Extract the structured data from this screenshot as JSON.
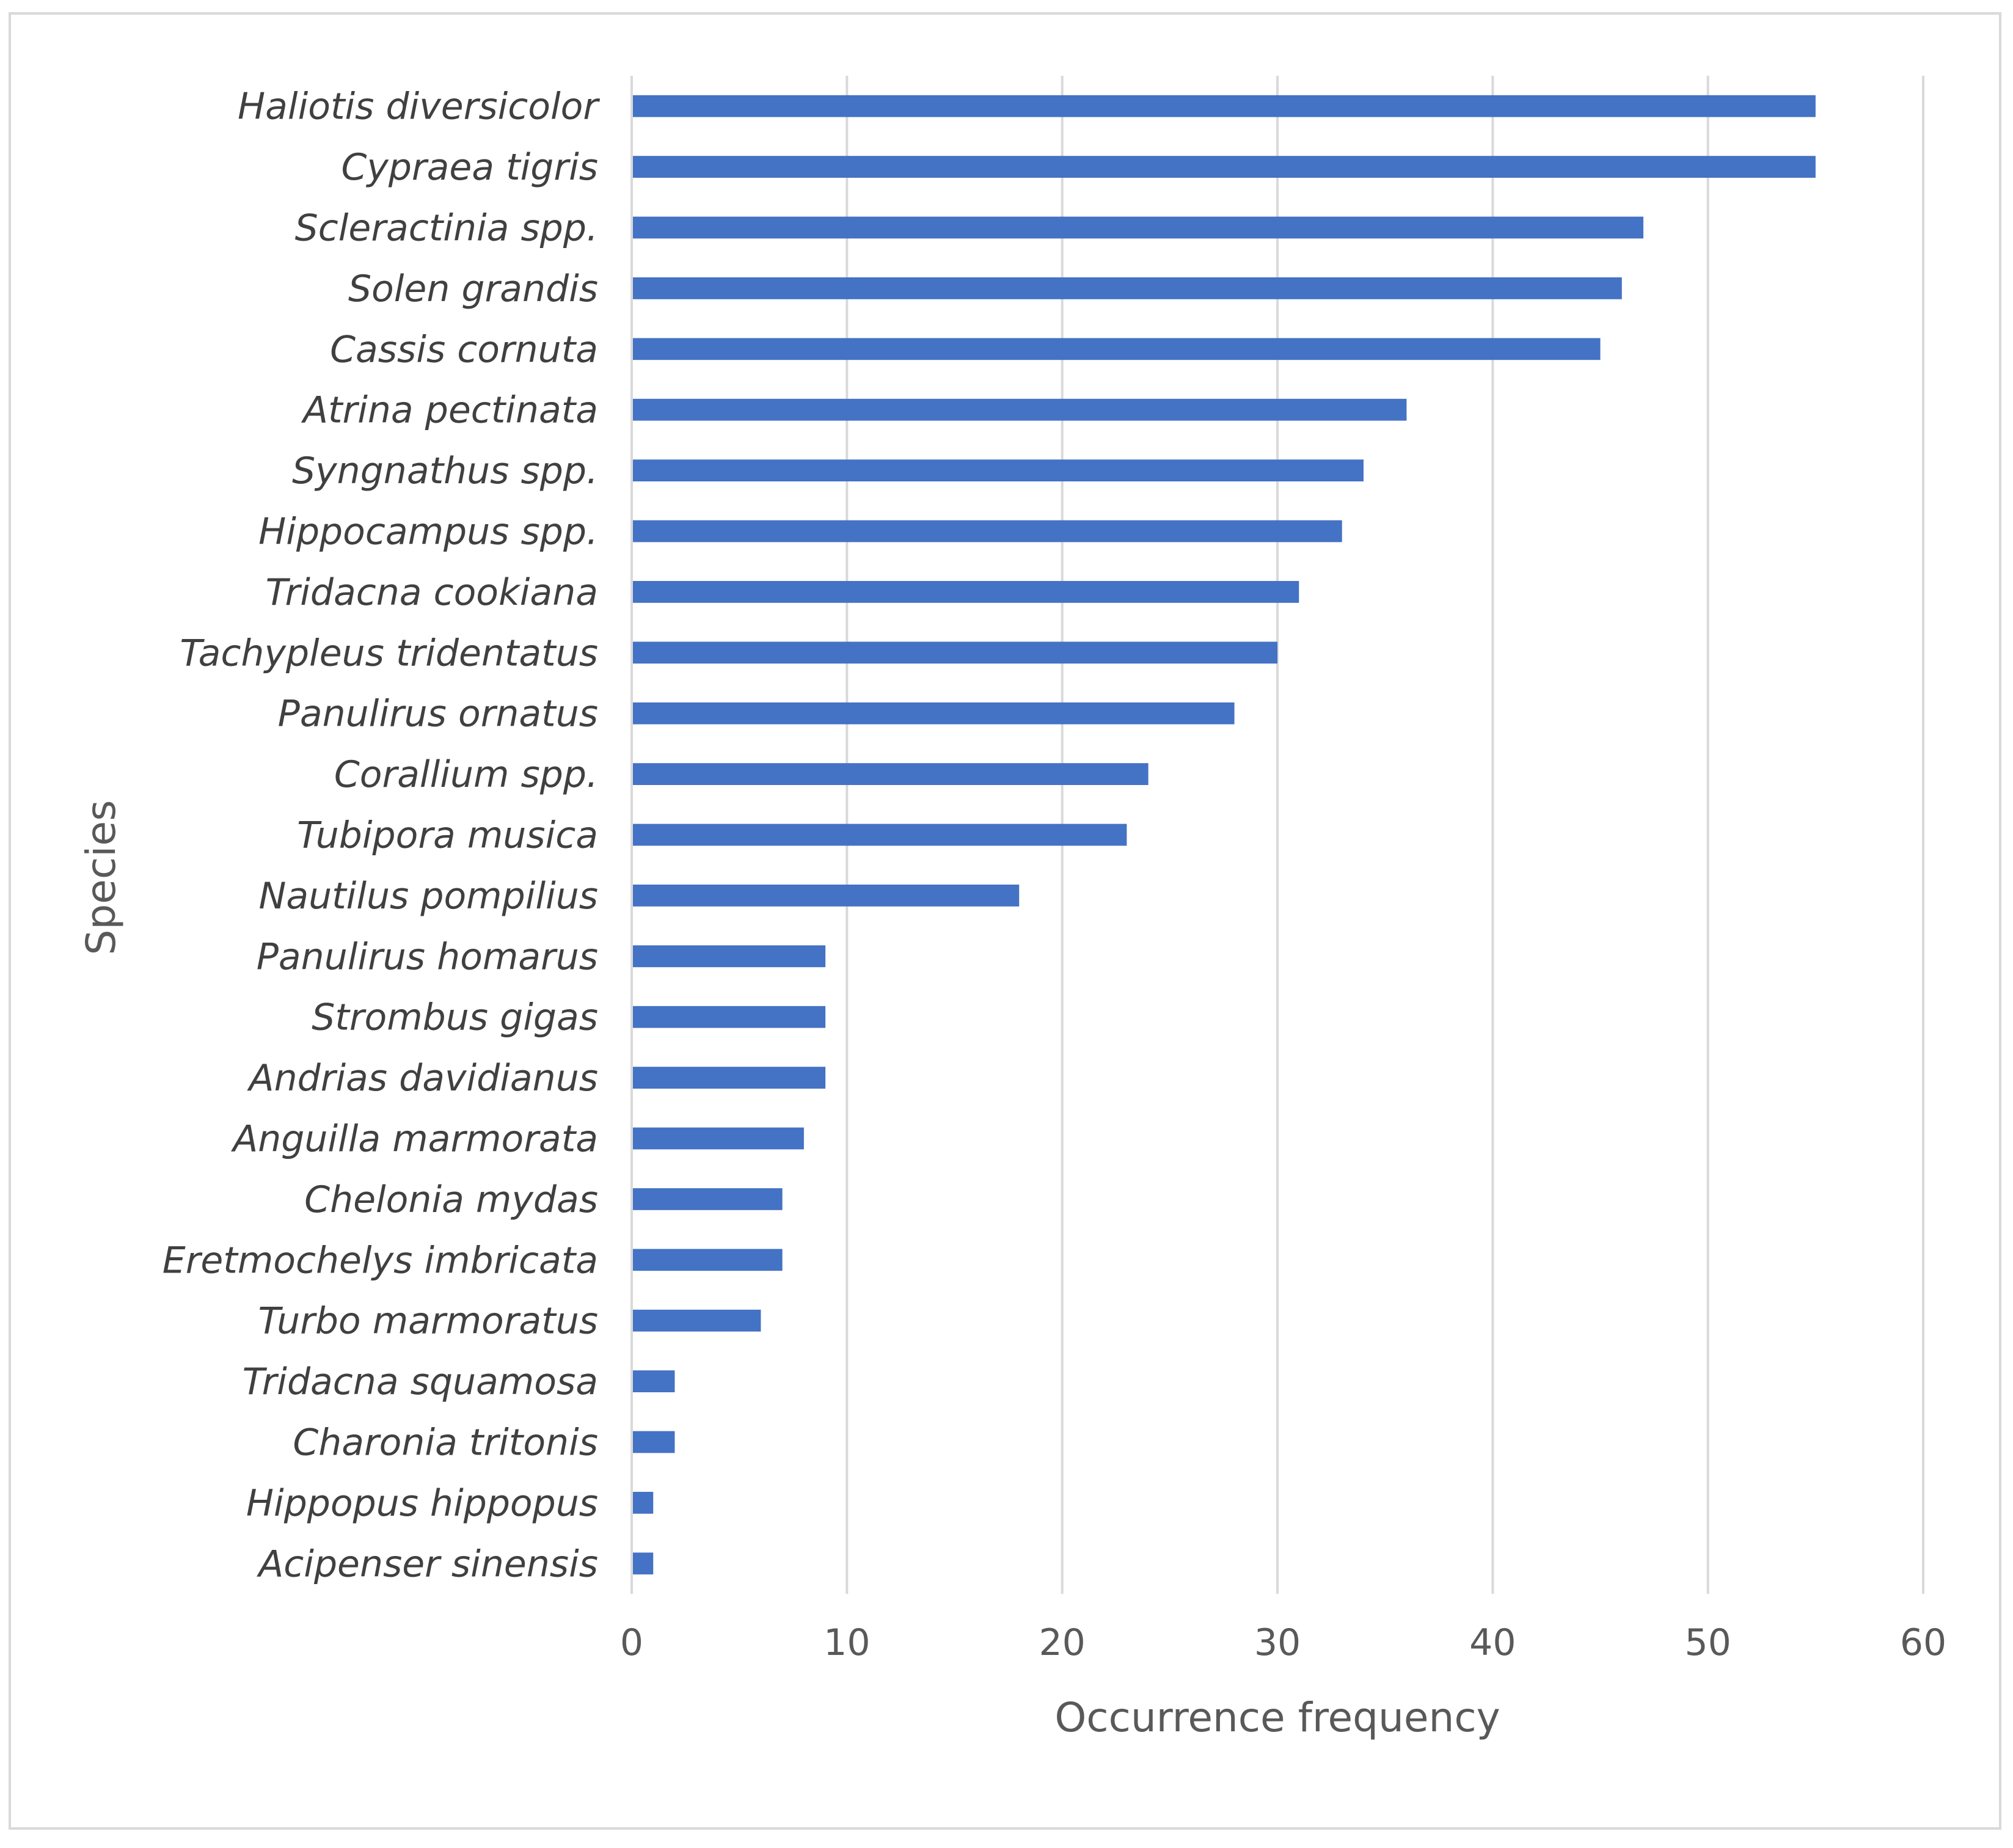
{
  "chart_data": {
    "type": "bar",
    "orientation": "horizontal",
    "title": "",
    "xlabel": "Occurrence frequency",
    "ylabel": "Species",
    "xlim": [
      0,
      60
    ],
    "xticks": [
      0,
      10,
      20,
      30,
      40,
      50,
      60
    ],
    "grid": "vertical major gridlines",
    "legend": "none",
    "bar_color": "#4472C4",
    "categories": [
      "Haliotis diversicolor",
      "Cypraea tigris",
      "Scleractinia spp.",
      "Solen grandis",
      "Cassis cornuta",
      "Atrina pectinata",
      "Syngnathus spp.",
      "Hippocampus spp.",
      "Tridacna cookiana",
      "Tachypleus tridentatus",
      "Panulirus ornatus",
      "Corallium spp.",
      "Tubipora musica",
      "Nautilus pompilius",
      "Panulirus homarus",
      "Strombus gigas",
      "Andrias davidianus",
      "Anguilla marmorata",
      "Chelonia mydas",
      "Eretmochelys imbricata",
      "Turbo marmoratus",
      "Tridacna squamosa",
      "Charonia tritonis",
      "Hippopus hippopus",
      "Acipenser sinensis"
    ],
    "values": [
      55,
      55,
      47,
      46,
      45,
      36,
      34,
      33,
      31,
      30,
      28,
      24,
      23,
      18,
      9,
      9,
      9,
      8,
      7,
      7,
      6,
      2,
      2,
      1,
      1
    ]
  }
}
